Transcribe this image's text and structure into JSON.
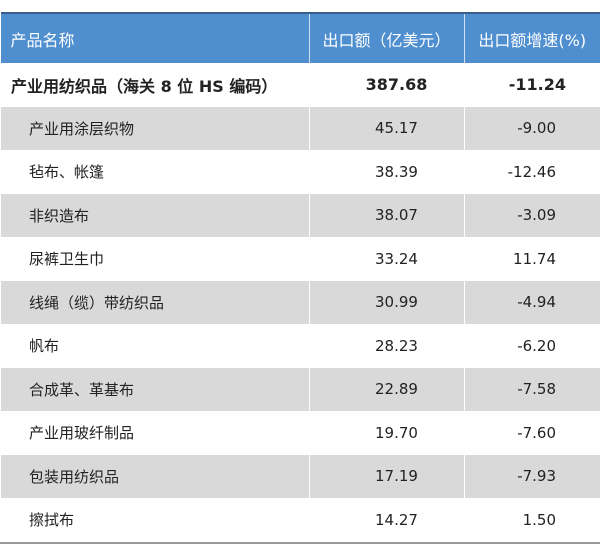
{
  "header": {
    "name": "产品名称",
    "amount": "出口额（亿美元）",
    "growth": "出口额增速(%)"
  },
  "total": {
    "name": "产业用纺织品（海关 8 位 HS 编码）",
    "amount": "387.68",
    "growth": "-11.24"
  },
  "rows": [
    {
      "name": "产业用涂层织物",
      "amount": "45.17",
      "growth": "-9.00"
    },
    {
      "name": "毡布、帐篷",
      "amount": "38.39",
      "growth": "-12.46"
    },
    {
      "name": "非织造布",
      "amount": "38.07",
      "growth": "-3.09"
    },
    {
      "name": "尿裤卫生巾",
      "amount": "33.24",
      "growth": "11.74"
    },
    {
      "name": "线绳（缆）带纺织品",
      "amount": "30.99",
      "growth": "-4.94"
    },
    {
      "name": "帆布",
      "amount": "28.23",
      "growth": "-6.20"
    },
    {
      "name": "合成革、革基布",
      "amount": "22.89",
      "growth": "-7.58"
    },
    {
      "name": "产业用玻纤制品",
      "amount": "19.70",
      "growth": "-7.60"
    },
    {
      "name": "包装用纺织品",
      "amount": "17.19",
      "growth": "-7.93"
    },
    {
      "name": "擦拭布",
      "amount": "14.27",
      "growth": "1.50"
    }
  ],
  "colors": {
    "header_bg": "#4f8fd0",
    "stripe": "#d9d9d9"
  }
}
